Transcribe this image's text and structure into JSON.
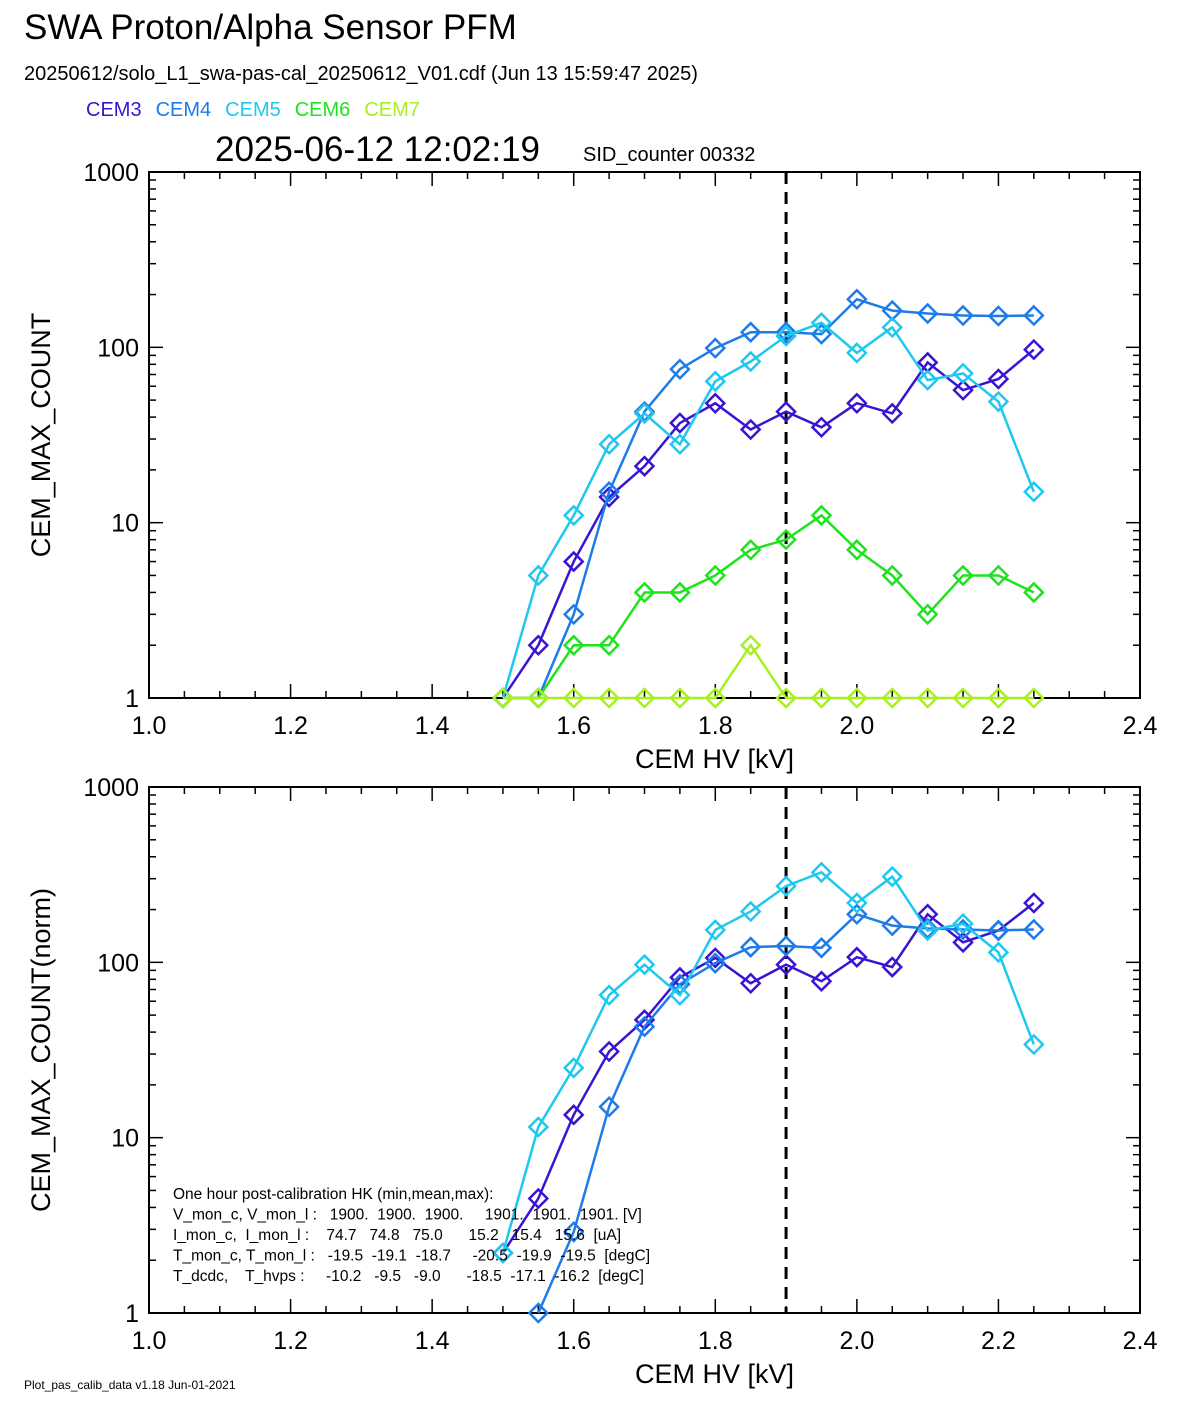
{
  "title": "SWA Proton/Alpha Sensor PFM",
  "subtitle": "20250612/solo_L1_swa-pas-cal_20250612_V01.cdf  (Jun 13 15:59:47 2025)",
  "timestamp": "2025-06-12 12:02:19",
  "sid_counter": "SID_counter 00332",
  "footer": "Plot_pas_calib_data v1.18 Jun-01-2021",
  "legend": [
    {
      "label": "CEM3",
      "color": "#3a14d2"
    },
    {
      "label": "CEM4",
      "color": "#1e7be8"
    },
    {
      "label": "CEM5",
      "color": "#1ec8ef"
    },
    {
      "label": "CEM6",
      "color": "#1ee31e"
    },
    {
      "label": "CEM7",
      "color": "#a8f01e"
    }
  ],
  "hk_lines": [
    "One hour post-calibration HK (min,mean,max):",
    "V_mon_c, V_mon_l :   1900.  1900.  1900.     1901.  1901.  1901. [V]",
    "I_mon_c,  I_mon_l :    74.7   74.8   75.0      15.2   15.4   15.6  [uA]",
    "T_mon_c, T_mon_l :   -19.5  -19.1  -18.7     -20.5  -19.9  -19.5  [degC]",
    "T_dcdc,    T_hvps :     -10.2   -9.5   -9.0      -18.5  -17.1  -16.2  [degC]"
  ],
  "chart_data": [
    {
      "type": "line",
      "ylabel": "CEM_MAX_COUNT",
      "xlabel": "CEM HV [kV]",
      "xlim": [
        1.0,
        2.4
      ],
      "ylim": [
        1,
        1000
      ],
      "yscale": "log",
      "x_ticks": [
        "1.0",
        "1.2",
        "1.4",
        "1.6",
        "1.8",
        "2.0",
        "2.2",
        "2.4"
      ],
      "y_ticks": [
        "1",
        "10",
        "100",
        "1000"
      ],
      "vline_x": 1.9,
      "marker": "diamond",
      "x": [
        1.5,
        1.55,
        1.6,
        1.65,
        1.7,
        1.75,
        1.8,
        1.85,
        1.9,
        1.95,
        2.0,
        2.05,
        2.1,
        2.15,
        2.2,
        2.25
      ],
      "series": [
        {
          "name": "CEM3",
          "color": "#3a14d2",
          "values": [
            1,
            2,
            6,
            14,
            21,
            37,
            48,
            34,
            43,
            35,
            48,
            42,
            82,
            57,
            66,
            97
          ]
        },
        {
          "name": "CEM4",
          "color": "#1e7be8",
          "values": [
            1,
            1,
            3,
            15,
            43,
            75,
            99,
            122,
            122,
            119,
            188,
            162,
            156,
            152,
            151,
            152
          ]
        },
        {
          "name": "CEM5",
          "color": "#1ec8ef",
          "values": [
            1,
            5,
            11,
            28,
            42,
            28,
            64,
            83,
            116,
            138,
            93,
            130,
            65,
            71,
            49,
            15
          ]
        },
        {
          "name": "CEM6",
          "color": "#1ee31e",
          "values": [
            1,
            1,
            2,
            2,
            4,
            4,
            5,
            7,
            8,
            11,
            7,
            5,
            3,
            5,
            5,
            4
          ]
        },
        {
          "name": "CEM7",
          "color": "#a8f01e",
          "values": [
            1,
            1,
            1,
            1,
            1,
            1,
            1,
            2,
            1,
            1,
            1,
            1,
            1,
            1,
            1,
            1
          ]
        }
      ]
    },
    {
      "type": "line",
      "ylabel": "CEM_MAX_COUNT(norm)",
      "xlabel": "CEM HV [kV]",
      "xlim": [
        1.0,
        2.4
      ],
      "ylim": [
        1,
        1000
      ],
      "yscale": "log",
      "x_ticks": [
        "1.0",
        "1.2",
        "1.4",
        "1.6",
        "1.8",
        "2.0",
        "2.2",
        "2.4"
      ],
      "y_ticks": [
        "1",
        "10",
        "100",
        "1000"
      ],
      "vline_x": 1.9,
      "marker": "diamond",
      "x": [
        1.5,
        1.55,
        1.6,
        1.65,
        1.7,
        1.75,
        1.8,
        1.85,
        1.9,
        1.95,
        2.0,
        2.05,
        2.1,
        2.15,
        2.2,
        2.25
      ],
      "series": [
        {
          "name": "CEM3",
          "color": "#3a14d2",
          "values": [
            2.2,
            4.5,
            13.5,
            31,
            47,
            82,
            106,
            76,
            97,
            78,
            107,
            94,
            188,
            130,
            152,
            218
          ]
        },
        {
          "name": "CEM4",
          "color": "#1e7be8",
          "values": [
            null,
            1,
            2.9,
            15,
            43,
            75,
            99,
            122,
            124,
            121,
            188,
            162,
            156,
            154,
            152,
            154
          ]
        },
        {
          "name": "CEM5",
          "color": "#1ec8ef",
          "values": [
            2.2,
            11.5,
            25,
            65,
            97,
            65,
            153,
            195,
            272,
            326,
            218,
            308,
            152,
            166,
            114,
            34
          ]
        }
      ]
    }
  ]
}
